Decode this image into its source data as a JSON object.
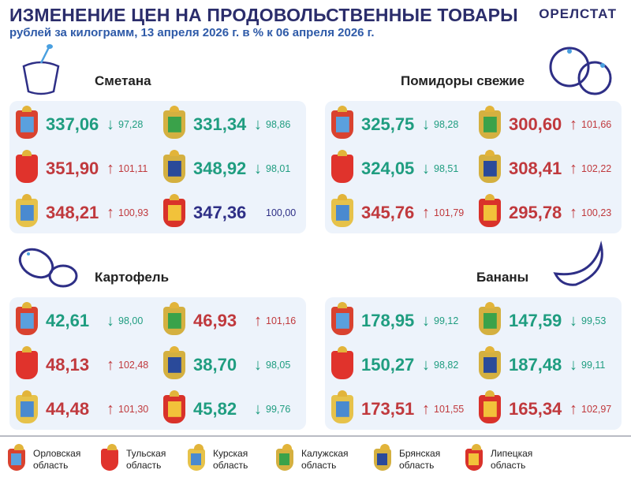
{
  "header": {
    "title": "ИЗМЕНЕНИЕ ЦЕН НА ПРОДОВОЛЬСТВЕННЫЕ ТОВАРЫ",
    "subtitle": "рублей за килограмм, 13 апреля 2026 г. в % к 06 апреля 2026 г.",
    "brand": "ОРЕЛСТАТ"
  },
  "colors": {
    "down": "#1f9d80",
    "up": "#c0393d",
    "same": "#2e2f86"
  },
  "regions": [
    {
      "id": "orel",
      "name": "Орловская область",
      "line1": "Орловская",
      "line2": "область",
      "color": "#d9422f",
      "inner": "#5aa0de"
    },
    {
      "id": "tula",
      "name": "Тульская область",
      "line1": "Тульская",
      "line2": "область",
      "color": "#e0332c",
      "inner": "#e0332c"
    },
    {
      "id": "kursk",
      "name": "Курская область",
      "line1": "Курская",
      "line2": "область",
      "color": "#e6c24a",
      "inner": "#4a8ad0"
    },
    {
      "id": "kaluga",
      "name": "Калужская область",
      "line1": "Калужская",
      "line2": "область",
      "color": "#d4b040",
      "inner": "#3aa24a"
    },
    {
      "id": "bryansk",
      "name": "Брянская область",
      "line1": "Брянская",
      "line2": "область",
      "color": "#d4b040",
      "inner": "#2a4a9a"
    },
    {
      "id": "lipetsk",
      "name": "Липецкая область",
      "line1": "Липецкая",
      "line2": "область",
      "color": "#d9322a",
      "inner": "#f2c23a"
    }
  ],
  "products": [
    {
      "name": "Сметана",
      "icon": "sour-cream-icon",
      "items": [
        {
          "region": "orel",
          "price": "337,06",
          "dir": "down",
          "pct": "97,28"
        },
        {
          "region": "tula",
          "price": "351,90",
          "dir": "up",
          "pct": "101,11"
        },
        {
          "region": "kursk",
          "price": "348,21",
          "dir": "up",
          "pct": "100,93"
        },
        {
          "region": "kaluga",
          "price": "331,34",
          "dir": "down",
          "pct": "98,86"
        },
        {
          "region": "bryansk",
          "price": "348,92",
          "dir": "down",
          "pct": "98,01"
        },
        {
          "region": "lipetsk",
          "price": "347,36",
          "dir": "same",
          "pct": "100,00"
        }
      ]
    },
    {
      "name": "Помидоры свежие",
      "icon": "tomato-icon",
      "items": [
        {
          "region": "orel",
          "price": "325,75",
          "dir": "down",
          "pct": "98,28"
        },
        {
          "region": "tula",
          "price": "324,05",
          "dir": "down",
          "pct": "98,51"
        },
        {
          "region": "kursk",
          "price": "345,76",
          "dir": "up",
          "pct": "101,79"
        },
        {
          "region": "kaluga",
          "price": "300,60",
          "dir": "up",
          "pct": "101,66"
        },
        {
          "region": "bryansk",
          "price": "308,41",
          "dir": "up",
          "pct": "102,22"
        },
        {
          "region": "lipetsk",
          "price": "295,78",
          "dir": "up",
          "pct": "100,23"
        }
      ]
    },
    {
      "name": "Картофель",
      "icon": "potato-icon",
      "items": [
        {
          "region": "orel",
          "price": "42,61",
          "dir": "down",
          "pct": "98,00"
        },
        {
          "region": "tula",
          "price": "48,13",
          "dir": "up",
          "pct": "102,48"
        },
        {
          "region": "kursk",
          "price": "44,48",
          "dir": "up",
          "pct": "101,30"
        },
        {
          "region": "kaluga",
          "price": "46,93",
          "dir": "up",
          "pct": "101,16"
        },
        {
          "region": "bryansk",
          "price": "38,70",
          "dir": "down",
          "pct": "98,05"
        },
        {
          "region": "lipetsk",
          "price": "45,82",
          "dir": "down",
          "pct": "99,76"
        }
      ]
    },
    {
      "name": "Бананы",
      "icon": "banana-icon",
      "items": [
        {
          "region": "orel",
          "price": "178,95",
          "dir": "down",
          "pct": "99,12"
        },
        {
          "region": "tula",
          "price": "150,27",
          "dir": "down",
          "pct": "98,82"
        },
        {
          "region": "kursk",
          "price": "173,51",
          "dir": "up",
          "pct": "101,55"
        },
        {
          "region": "kaluga",
          "price": "147,59",
          "dir": "down",
          "pct": "99,53"
        },
        {
          "region": "bryansk",
          "price": "187,48",
          "dir": "down",
          "pct": "99,11"
        },
        {
          "region": "lipetsk",
          "price": "165,34",
          "dir": "up",
          "pct": "102,97"
        }
      ]
    }
  ]
}
